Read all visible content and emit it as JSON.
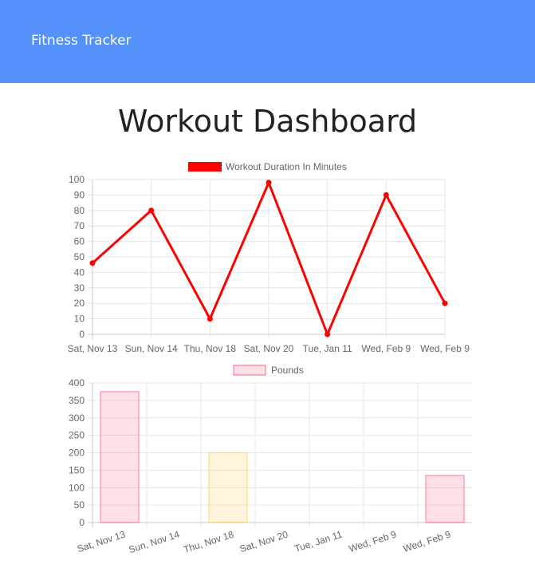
{
  "header": {
    "brand": "Fitness Tracker"
  },
  "page_title": "Workout Dashboard",
  "chart_data": [
    {
      "type": "line",
      "legend": "Workout Duration In Minutes",
      "legend_position": "top",
      "categories": [
        "Sat, Nov 13",
        "Sun, Nov 14",
        "Thu, Nov 18",
        "Sat, Nov 20",
        "Tue, Jan 11",
        "Wed, Feb 9",
        "Wed, Feb 9"
      ],
      "series": [
        {
          "name": "Workout Duration In Minutes",
          "values": [
            46,
            80,
            10,
            98,
            0,
            90,
            20
          ],
          "color": "#ff0000"
        }
      ],
      "ylim": [
        0,
        100
      ],
      "yticks": [
        0,
        10,
        20,
        30,
        40,
        50,
        60,
        70,
        80,
        90,
        100
      ],
      "grid": true
    },
    {
      "type": "bar",
      "legend": "Pounds",
      "legend_position": "top",
      "categories": [
        "Sat, Nov 13",
        "Sun, Nov 14",
        "Thu, Nov 18",
        "Sat, Nov 20",
        "Tue, Jan 11",
        "Wed, Feb 9",
        "Wed, Feb 9"
      ],
      "series": [
        {
          "name": "Pounds",
          "values": [
            375,
            0,
            200,
            0,
            0,
            0,
            135
          ]
        }
      ],
      "bar_colors": [
        "#ff6384",
        "#ff6384",
        "#ffcd56",
        "#ffcd56",
        "#ffcd56",
        "#ff6384",
        "#ff6384"
      ],
      "ylim": [
        0,
        400
      ],
      "yticks": [
        0,
        50,
        100,
        150,
        200,
        250,
        300,
        350,
        400
      ],
      "grid": true
    }
  ]
}
